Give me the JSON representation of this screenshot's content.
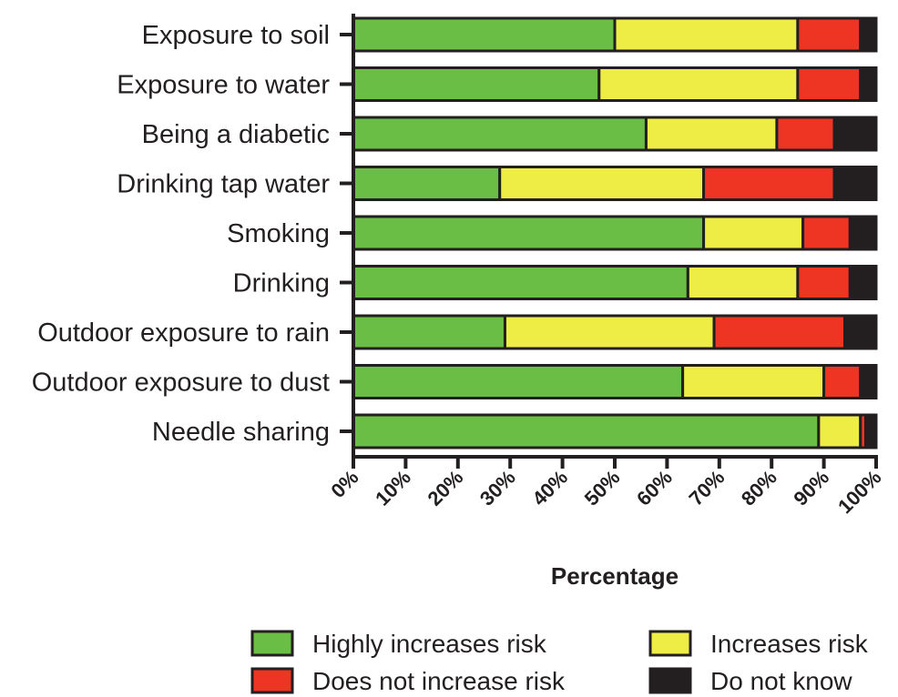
{
  "chart_data": {
    "type": "bar",
    "orientation": "horizontal",
    "stacked": true,
    "categories": [
      "Exposure to soil",
      "Exposure to water",
      "Being a diabetic",
      "Drinking tap water",
      "Smoking",
      "Drinking",
      "Outdoor exposure to rain",
      "Outdoor exposure to dust",
      "Needle sharing"
    ],
    "series": [
      {
        "name": "Highly increases risk",
        "color": "#6abd45",
        "values": [
          50,
          47,
          56,
          28,
          67,
          64,
          29,
          63,
          89
        ]
      },
      {
        "name": "Increases risk",
        "color": "#eded45",
        "values": [
          35,
          38,
          25,
          39,
          19,
          21,
          40,
          27,
          8
        ]
      },
      {
        "name": "Does not increase risk",
        "color": "#ee3524",
        "values": [
          12,
          12,
          11,
          25,
          9,
          10,
          25,
          7,
          1
        ]
      },
      {
        "name": "Do not know",
        "color": "#231f20",
        "values": [
          3,
          3,
          8,
          8,
          5,
          5,
          6,
          3,
          2
        ]
      }
    ],
    "xlabel": "Percentage",
    "ylabel": "",
    "xlim": [
      0,
      100
    ],
    "x_ticks": [
      "0%",
      "10%",
      "20%",
      "30%",
      "40%",
      "50%",
      "60%",
      "70%",
      "80%",
      "90%",
      "100%"
    ],
    "grid": false,
    "legend_position": "bottom"
  }
}
